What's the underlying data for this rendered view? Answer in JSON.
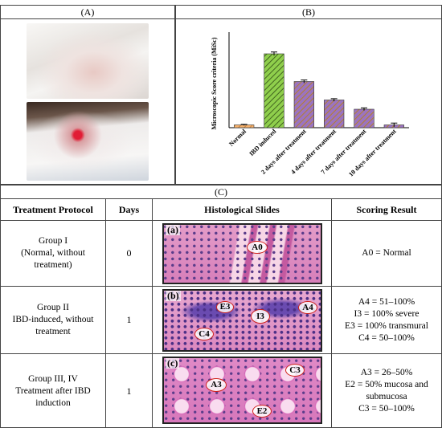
{
  "panels": {
    "a": "(A)",
    "b": "(B)",
    "c": "(C)"
  },
  "chart_data": {
    "type": "bar",
    "ylabel": "Microscopic Score criteria (MiSc)",
    "xlabel": "",
    "ylim": [
      0,
      5
    ],
    "categories": [
      "Normal",
      "IBD induced",
      "2 days after treatment",
      "4 days after treatment",
      "7 days after treatment",
      "10 days after treatment"
    ],
    "values": [
      0.15,
      4.0,
      2.5,
      1.5,
      1.0,
      0.15
    ],
    "errors": [
      0.03,
      0.1,
      0.08,
      0.07,
      0.07,
      0.1
    ],
    "colors": [
      "#f5a25a",
      "#88c944",
      "#8b5fa8",
      "#8b5fa8",
      "#8b5fa8",
      "#8b5fa8"
    ],
    "grid": false,
    "legend": "none"
  },
  "table": {
    "headers": [
      "Treatment Protocol",
      "Days",
      "Histological Slides",
      "Scoring Result"
    ],
    "rows": [
      {
        "protocol": [
          "Group I",
          "(Normal, without",
          "treatment)"
        ],
        "days": "0",
        "slide_letter": "(a)",
        "labels": [
          "A0"
        ],
        "scoring": [
          "A0 = Normal"
        ]
      },
      {
        "protocol": [
          "Group II",
          "IBD-induced, without",
          "treatment"
        ],
        "days": "1",
        "slide_letter": "(b)",
        "labels": [
          "E3",
          "I3",
          "A4",
          "C4"
        ],
        "scoring": [
          "A4 = 51–100%",
          "I3 = 100% severe",
          "E3 = 100% transmural",
          "C4 = 50–100%"
        ]
      },
      {
        "protocol": [
          "Group III, IV",
          "Treatment after IBD",
          "induction"
        ],
        "days": "1",
        "slide_letter": "(c)",
        "labels": [
          "A3",
          "C3",
          "E2"
        ],
        "scoring": [
          "A3 = 26–50%",
          "E2 = 50% mucosa and",
          "submucosa",
          "C3 = 50–100%"
        ]
      }
    ]
  }
}
